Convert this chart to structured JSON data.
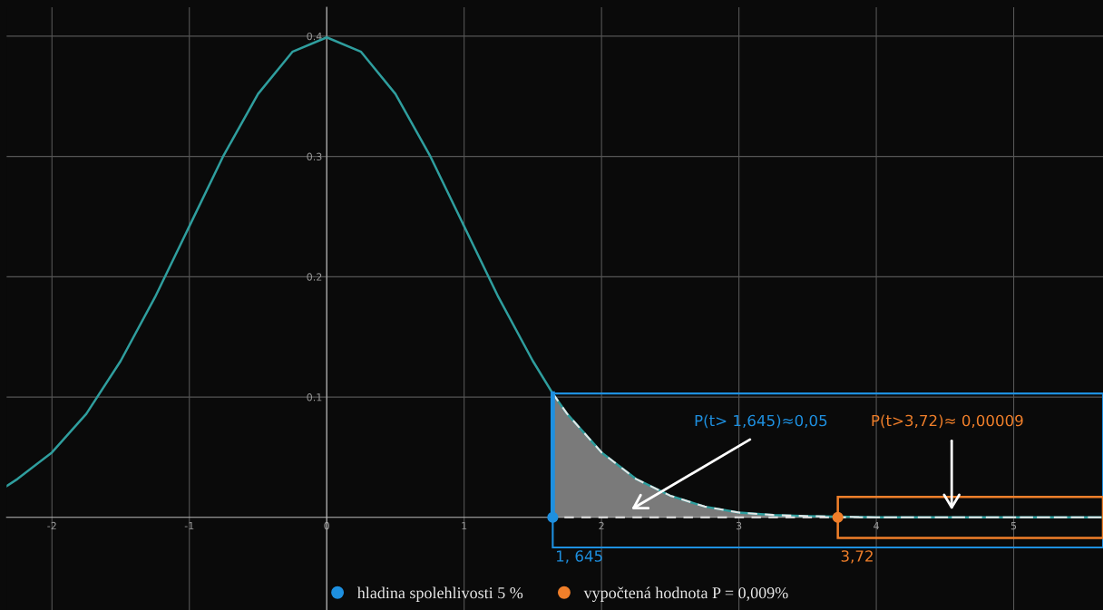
{
  "chart_data": {
    "type": "line",
    "x": [
      -2.33,
      -2.25,
      -2.0,
      -1.75,
      -1.5,
      -1.25,
      -1.0,
      -0.75,
      -0.5,
      -0.25,
      0,
      0.25,
      0.5,
      0.75,
      1.0,
      1.25,
      1.5,
      1.645,
      1.75,
      2.0,
      2.25,
      2.5,
      2.75,
      3.0,
      3.25,
      3.5,
      4.0,
      4.5,
      5.0,
      5.65
    ],
    "series": [
      {
        "color": "#2f9e9e",
        "values": [
          0.026,
          0.032,
          0.054,
          0.086,
          0.13,
          0.183,
          0.242,
          0.301,
          0.352,
          0.387,
          0.399,
          0.387,
          0.352,
          0.301,
          0.242,
          0.183,
          0.13,
          0.103,
          0.086,
          0.054,
          0.032,
          0.018,
          0.009,
          0.004,
          0.002,
          0.001,
          0,
          0,
          0,
          0
        ]
      },
      {
        "type": "area",
        "color": "#7a7a7a",
        "line_style": "dashed",
        "x": [
          1.645,
          1.75,
          2.0,
          2.25,
          2.5,
          2.75,
          3.0,
          3.25,
          3.5,
          4.0,
          5.65
        ],
        "values": [
          0.103,
          0.086,
          0.054,
          0.032,
          0.018,
          0.009,
          0.004,
          0.002,
          0.001,
          0,
          0
        ]
      },
      {
        "type": "scatter",
        "marker": "circle",
        "name": "hladina spolehlivosti 5 %",
        "color": "#1e90e0",
        "x": [
          1.645
        ],
        "values": [
          0
        ]
      },
      {
        "type": "scatter",
        "marker": "circle",
        "name": "vypočtená hodnota P = 0,009%",
        "color": "#f07f2a",
        "x": [
          3.72
        ],
        "values": [
          0
        ]
      }
    ],
    "ref_lines": [
      {
        "axis": "x",
        "value": 1.645,
        "color": "#1e90e0"
      }
    ],
    "annotations": [
      "P(t> 1,645)≈0,05",
      "P(t>3,72)≈ 0,00009",
      {
        "text": "1, 645",
        "x": 1.645,
        "y": 0
      },
      {
        "text": "3,72",
        "x": 3.72,
        "y": 0
      }
    ],
    "xlim": [
      -2.33,
      5.65
    ],
    "ylim": [
      -0.077,
      0.424
    ],
    "xticks": [
      -2,
      -1,
      0,
      1,
      2,
      3,
      4,
      5
    ],
    "yticks": [
      0.1,
      0.2,
      0.3,
      0.4
    ],
    "grid": true,
    "legend": "bottom"
  }
}
